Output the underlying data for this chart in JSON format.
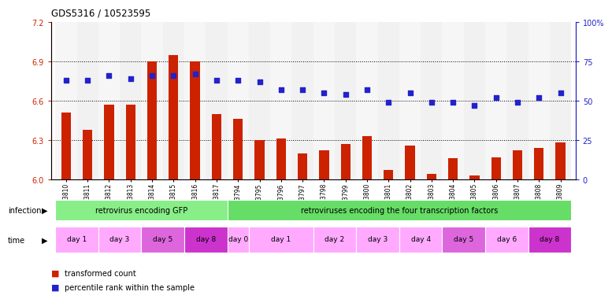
{
  "title": "GDS5316 / 10523595",
  "samples": [
    "GSM943810",
    "GSM943811",
    "GSM943812",
    "GSM943813",
    "GSM943814",
    "GSM943815",
    "GSM943816",
    "GSM943817",
    "GSM943794",
    "GSM943795",
    "GSM943796",
    "GSM943797",
    "GSM943798",
    "GSM943799",
    "GSM943800",
    "GSM943801",
    "GSM943802",
    "GSM943803",
    "GSM943804",
    "GSM943805",
    "GSM943806",
    "GSM943807",
    "GSM943808",
    "GSM943809"
  ],
  "bar_values": [
    6.51,
    6.38,
    6.57,
    6.57,
    6.9,
    6.95,
    6.9,
    6.5,
    6.46,
    6.3,
    6.31,
    6.2,
    6.22,
    6.27,
    6.33,
    6.07,
    6.26,
    6.04,
    6.16,
    6.03,
    6.17,
    6.22,
    6.24,
    6.28
  ],
  "percentile_values": [
    63,
    63,
    66,
    64,
    66,
    66,
    67,
    63,
    63,
    62,
    57,
    57,
    55,
    54,
    57,
    49,
    55,
    49,
    49,
    47,
    52,
    49,
    52,
    55
  ],
  "ylim_left": [
    6.0,
    7.2
  ],
  "ylim_right": [
    0,
    100
  ],
  "yticks_left": [
    6.0,
    6.3,
    6.6,
    6.9,
    7.2
  ],
  "yticks_right": [
    0,
    25,
    50,
    75,
    100
  ],
  "bar_color": "#cc2200",
  "dot_color": "#2222cc",
  "infection_groups": [
    {
      "label": "retrovirus encoding GFP",
      "start": 0,
      "end": 7,
      "color": "#88ee88"
    },
    {
      "label": "retroviruses encoding the four transcription factors",
      "start": 8,
      "end": 23,
      "color": "#66dd66"
    }
  ],
  "time_groups": [
    {
      "label": "day 1",
      "start": 0,
      "end": 1,
      "color": "#ffaaff"
    },
    {
      "label": "day 3",
      "start": 2,
      "end": 3,
      "color": "#ffaaff"
    },
    {
      "label": "day 5",
      "start": 4,
      "end": 5,
      "color": "#dd66dd"
    },
    {
      "label": "day 8",
      "start": 6,
      "end": 7,
      "color": "#cc33cc"
    },
    {
      "label": "day 0",
      "start": 8,
      "end": 8,
      "color": "#ffaaff"
    },
    {
      "label": "day 1",
      "start": 9,
      "end": 11,
      "color": "#ffaaff"
    },
    {
      "label": "day 2",
      "start": 12,
      "end": 13,
      "color": "#ffaaff"
    },
    {
      "label": "day 3",
      "start": 14,
      "end": 15,
      "color": "#ffaaff"
    },
    {
      "label": "day 4",
      "start": 16,
      "end": 17,
      "color": "#ffaaff"
    },
    {
      "label": "day 5",
      "start": 18,
      "end": 19,
      "color": "#dd66dd"
    },
    {
      "label": "day 6",
      "start": 20,
      "end": 21,
      "color": "#ffaaff"
    },
    {
      "label": "day 8",
      "start": 22,
      "end": 23,
      "color": "#cc33cc"
    }
  ],
  "legend_items": [
    {
      "label": "transformed count",
      "color": "#cc2200"
    },
    {
      "label": "percentile rank within the sample",
      "color": "#2222cc"
    }
  ],
  "fig_width": 7.61,
  "fig_height": 3.84,
  "dpi": 100
}
